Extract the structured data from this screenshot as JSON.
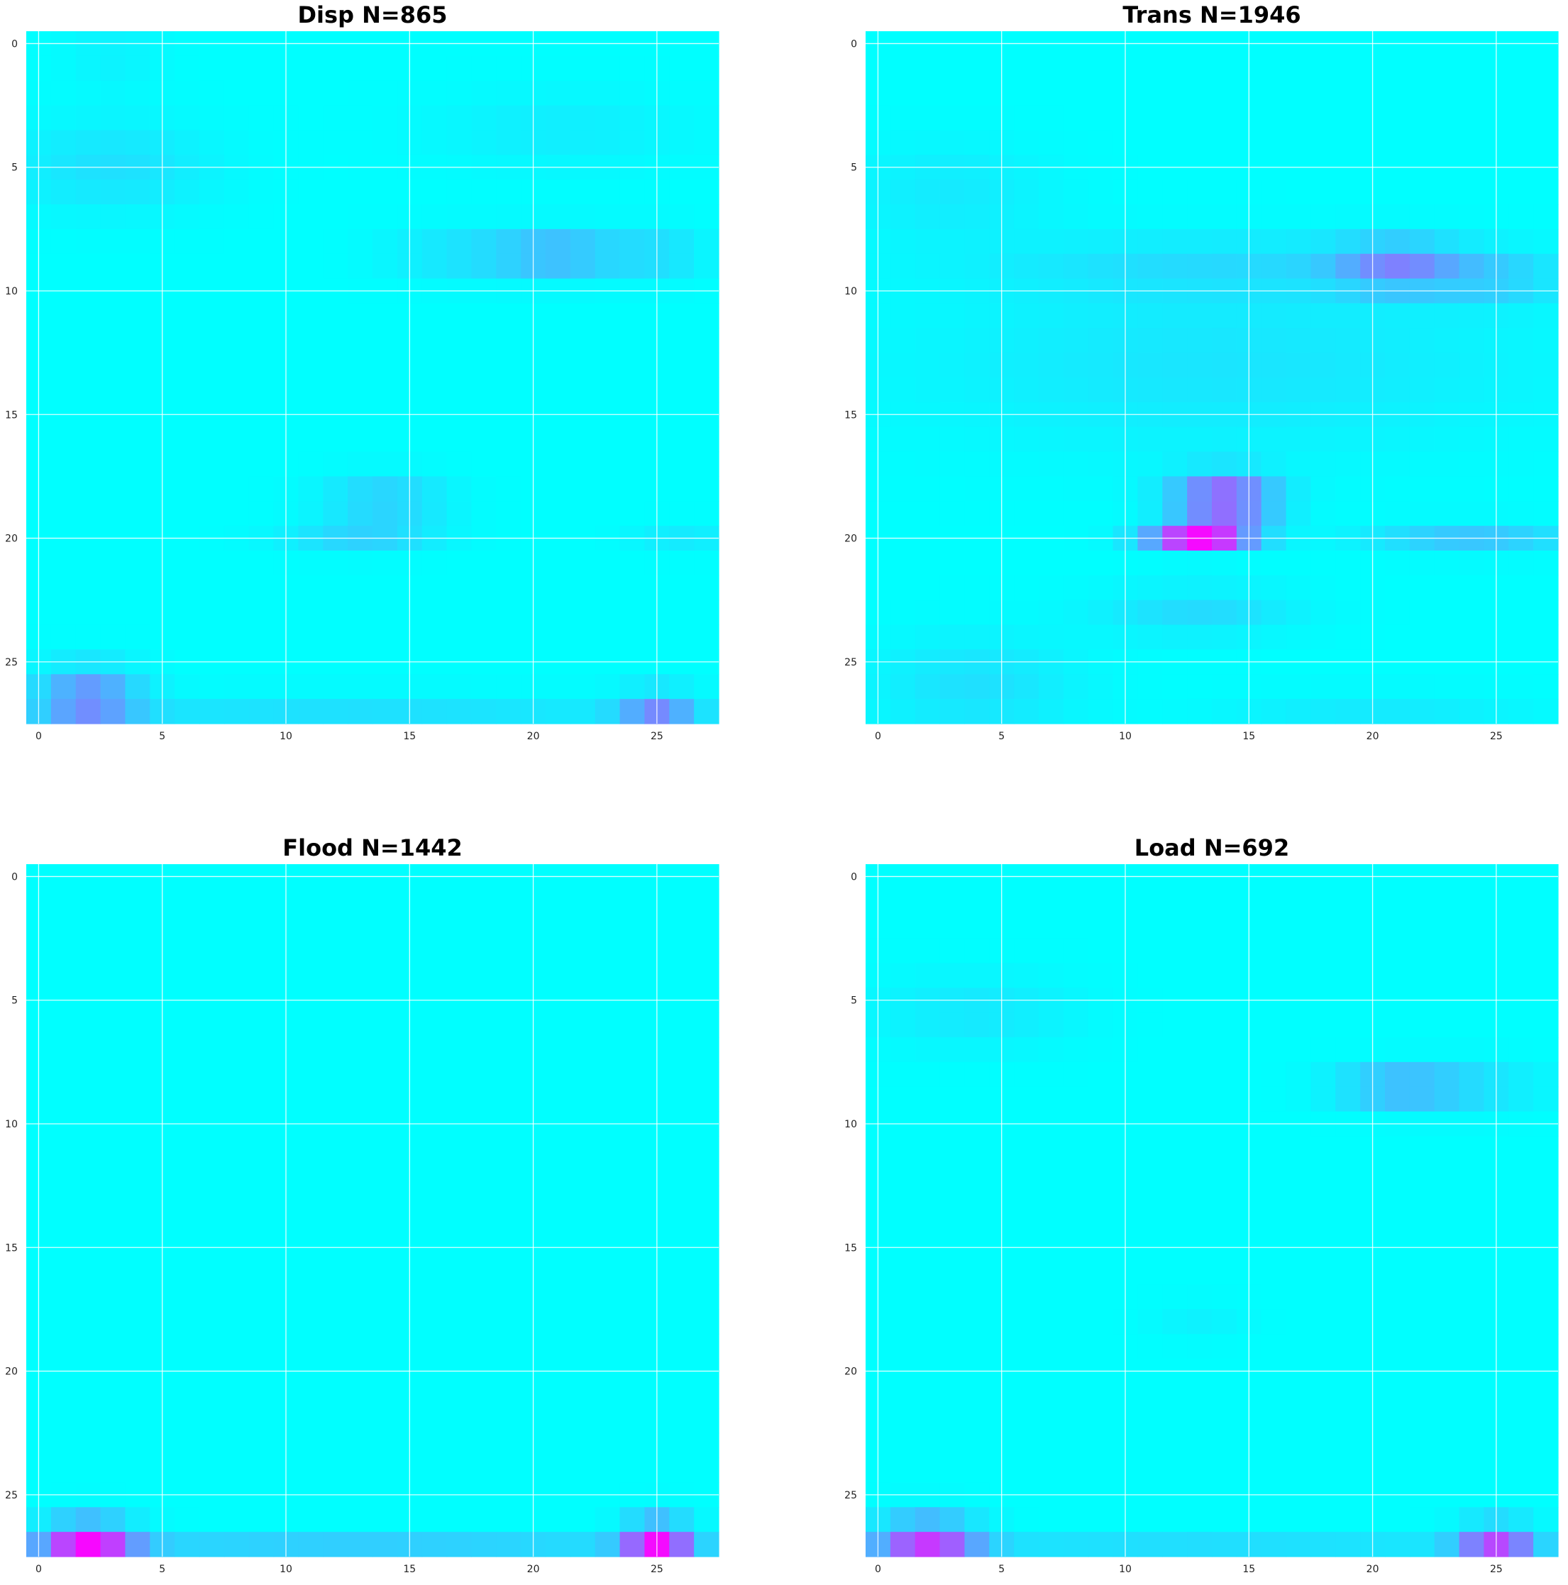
{
  "chart_data": [
    {
      "type": "heatmap",
      "title": "Disp N=865",
      "rows": 28,
      "cols": 28,
      "xticks": [
        "0",
        "5",
        "10",
        "15",
        "20",
        "25"
      ],
      "yticks": [
        "0",
        "5",
        "10",
        "15",
        "20",
        "25"
      ],
      "xlim": [
        -0.5,
        27.5
      ],
      "ylim": [
        27.5,
        -0.5
      ],
      "colormap": "cool",
      "grid": true,
      "hotspots": [
        {
          "row": 0.5,
          "col": 3,
          "value": 0.05,
          "sr": 1.5,
          "sc": 2
        },
        {
          "row": 5,
          "col": 3,
          "value": 0.12,
          "sr": 1.8,
          "sc": 4
        },
        {
          "row": 3.5,
          "col": 21,
          "value": 0.07,
          "sr": 1.5,
          "sc": 5
        },
        {
          "row": 8.5,
          "col": 21,
          "value": 0.3,
          "sr": 0.9,
          "sc": 2.5
        },
        {
          "row": 8.5,
          "col": 17,
          "value": 0.12,
          "sr": 1.0,
          "sc": 3
        },
        {
          "row": 8.5,
          "col": 25,
          "value": 0.14,
          "sr": 1.0,
          "sc": 2
        },
        {
          "row": 18.5,
          "col": 14,
          "value": 0.2,
          "sr": 1.0,
          "sc": 2.5
        },
        {
          "row": 20,
          "col": 13,
          "value": 0.16,
          "sr": 0.6,
          "sc": 3
        },
        {
          "row": 20,
          "col": 26,
          "value": 0.08,
          "sr": 0.6,
          "sc": 2
        },
        {
          "row": 26.5,
          "col": 2,
          "value": 0.45,
          "sr": 1.2,
          "sc": 2
        },
        {
          "row": 27,
          "col": 25,
          "value": 0.4,
          "sr": 0.8,
          "sc": 1.5
        },
        {
          "row": 27,
          "col": 13,
          "value": 0.12,
          "sr": 0.7,
          "sc": 14
        }
      ]
    },
    {
      "type": "heatmap",
      "title": "Trans N=1946",
      "rows": 28,
      "cols": 28,
      "xticks": [
        "0",
        "5",
        "10",
        "15",
        "20",
        "25"
      ],
      "yticks": [
        "0",
        "5",
        "10",
        "15",
        "20",
        "25"
      ],
      "xlim": [
        -0.5,
        27.5
      ],
      "ylim": [
        27.5,
        -0.5
      ],
      "colormap": "cool",
      "grid": true,
      "hotspots": [
        {
          "row": 6,
          "col": 3,
          "value": 0.08,
          "sr": 2.0,
          "sc": 4
        },
        {
          "row": 9,
          "col": 21,
          "value": 0.4,
          "sr": 1.0,
          "sc": 2.5
        },
        {
          "row": 9,
          "col": 14,
          "value": 0.12,
          "sr": 1.2,
          "sc": 9
        },
        {
          "row": 9.5,
          "col": 25,
          "value": 0.18,
          "sr": 1.0,
          "sc": 2.5
        },
        {
          "row": 13,
          "col": 14,
          "value": 0.1,
          "sr": 3.5,
          "sc": 12
        },
        {
          "row": 18.5,
          "col": 14,
          "value": 0.7,
          "sr": 1.0,
          "sc": 2
        },
        {
          "row": 20,
          "col": 13,
          "value": 0.9,
          "sr": 0.5,
          "sc": 2.0
        },
        {
          "row": 20,
          "col": 24,
          "value": 0.22,
          "sr": 0.6,
          "sc": 4
        },
        {
          "row": 23,
          "col": 13,
          "value": 0.14,
          "sr": 1.0,
          "sc": 4
        },
        {
          "row": 26,
          "col": 4,
          "value": 0.12,
          "sr": 2.0,
          "sc": 4
        },
        {
          "row": 27,
          "col": 20,
          "value": 0.08,
          "sr": 0.8,
          "sc": 6
        }
      ]
    },
    {
      "type": "heatmap",
      "title": "Flood N=1442",
      "rows": 28,
      "cols": 28,
      "xticks": [
        "0",
        "5",
        "10",
        "15",
        "20",
        "25"
      ],
      "yticks": [
        "0",
        "5",
        "10",
        "15",
        "20",
        "25"
      ],
      "xlim": [
        -0.5,
        27.5
      ],
      "ylim": [
        27.5,
        -0.5
      ],
      "colormap": "cool",
      "grid": true,
      "hotspots": [
        {
          "row": 27,
          "col": 2,
          "value": 0.85,
          "sr": 0.9,
          "sc": 1.8
        },
        {
          "row": 27,
          "col": 25,
          "value": 0.85,
          "sr": 0.9,
          "sc": 1.3
        },
        {
          "row": 27.2,
          "col": 13,
          "value": 0.22,
          "sr": 0.5,
          "sc": 16
        }
      ]
    },
    {
      "type": "heatmap",
      "title": "Load N=692",
      "rows": 28,
      "cols": 28,
      "xticks": [
        "0",
        "5",
        "10",
        "15",
        "20",
        "25"
      ],
      "yticks": [
        "0",
        "5",
        "10",
        "15",
        "20",
        "25"
      ],
      "xlim": [
        -0.5,
        27.5
      ],
      "ylim": [
        27.5,
        -0.5
      ],
      "colormap": "cool",
      "grid": true,
      "hotspots": [
        {
          "row": 5.5,
          "col": 4,
          "value": 0.09,
          "sr": 1.5,
          "sc": 4
        },
        {
          "row": 8.5,
          "col": 21,
          "value": 0.3,
          "sr": 0.8,
          "sc": 2.5
        },
        {
          "row": 8.5,
          "col": 24,
          "value": 0.12,
          "sr": 1.0,
          "sc": 3
        },
        {
          "row": 18,
          "col": 13,
          "value": 0.05,
          "sr": 0.8,
          "sc": 2
        },
        {
          "row": 27,
          "col": 2,
          "value": 0.7,
          "sr": 1.0,
          "sc": 2
        },
        {
          "row": 27,
          "col": 25,
          "value": 0.65,
          "sr": 0.8,
          "sc": 1.5
        },
        {
          "row": 27.2,
          "col": 13,
          "value": 0.15,
          "sr": 0.5,
          "sc": 15
        }
      ]
    }
  ]
}
